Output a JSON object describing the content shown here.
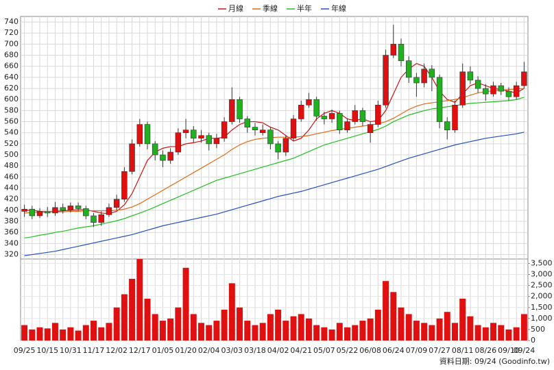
{
  "chart_data": {
    "type": "candlestick",
    "legend": "top",
    "grid": true,
    "source": "資料日期: 09/24 (Goodinfo.tw)",
    "up_color": "#e01010",
    "down_color": "#20b020",
    "categories": [
      "09/25",
      null,
      null,
      "10/15",
      null,
      null,
      "10/31",
      null,
      null,
      "11/17",
      null,
      null,
      "12/02",
      null,
      null,
      "12/17",
      null,
      null,
      "01/05",
      null,
      null,
      "01/20",
      null,
      null,
      "02/04",
      null,
      null,
      "03/03",
      null,
      null,
      "03/18",
      null,
      null,
      "04/02",
      null,
      null,
      "04/21",
      null,
      null,
      "05/07",
      null,
      null,
      "05/22",
      null,
      null,
      "06/08",
      null,
      null,
      "06/24",
      null,
      null,
      "07/09",
      null,
      null,
      "07/27",
      null,
      null,
      "08/11",
      null,
      null,
      "08/26",
      null,
      null,
      "09/10",
      null,
      "09/24"
    ],
    "open": [
      398,
      402,
      390,
      398,
      395,
      405,
      400,
      408,
      403,
      390,
      378,
      392,
      405,
      420,
      470,
      520,
      555,
      520,
      500,
      490,
      505,
      540,
      545,
      530,
      535,
      520,
      530,
      560,
      600,
      565,
      550,
      540,
      545,
      520,
      505,
      530,
      565,
      590,
      600,
      570,
      565,
      575,
      545,
      560,
      580,
      540,
      555,
      590,
      680,
      700,
      670,
      640,
      630,
      655,
      640,
      560,
      545,
      590,
      650,
      635,
      620,
      610,
      625,
      615,
      605,
      625
    ],
    "high": [
      410,
      408,
      404,
      406,
      415,
      412,
      414,
      414,
      408,
      395,
      398,
      412,
      428,
      478,
      528,
      565,
      560,
      525,
      508,
      512,
      548,
      565,
      552,
      545,
      540,
      538,
      568,
      622,
      605,
      570,
      558,
      555,
      550,
      525,
      535,
      572,
      598,
      612,
      605,
      578,
      582,
      580,
      566,
      590,
      585,
      560,
      598,
      690,
      735,
      710,
      678,
      648,
      665,
      662,
      645,
      568,
      598,
      665,
      660,
      642,
      628,
      632,
      630,
      622,
      632,
      668
    ],
    "low": [
      388,
      384,
      386,
      388,
      390,
      394,
      396,
      398,
      384,
      370,
      372,
      388,
      400,
      415,
      465,
      515,
      510,
      490,
      478,
      484,
      500,
      530,
      522,
      522,
      508,
      512,
      524,
      555,
      558,
      540,
      535,
      535,
      510,
      492,
      498,
      525,
      560,
      585,
      562,
      555,
      558,
      538,
      540,
      555,
      552,
      522,
      550,
      585,
      675,
      660,
      630,
      605,
      622,
      615,
      548,
      528,
      540,
      585,
      628,
      612,
      598,
      605,
      608,
      598,
      600,
      620
    ],
    "close": [
      402,
      390,
      398,
      395,
      405,
      400,
      408,
      403,
      390,
      378,
      392,
      405,
      420,
      470,
      520,
      555,
      520,
      500,
      490,
      505,
      540,
      545,
      530,
      535,
      520,
      530,
      560,
      600,
      565,
      550,
      545,
      545,
      520,
      505,
      530,
      565,
      590,
      600,
      570,
      565,
      575,
      545,
      560,
      580,
      560,
      555,
      590,
      680,
      700,
      670,
      640,
      630,
      655,
      640,
      560,
      545,
      590,
      650,
      635,
      620,
      610,
      625,
      615,
      605,
      625,
      650
    ],
    "ylim": [
      312,
      750
    ],
    "yticks": [
      320,
      340,
      360,
      380,
      400,
      420,
      440,
      460,
      480,
      500,
      520,
      540,
      560,
      580,
      600,
      620,
      640,
      660,
      680,
      700,
      720,
      740
    ],
    "series": [
      {
        "name": "月線",
        "color": "#d01010",
        "values": [
          400,
          400,
          398,
          397,
          398,
          399,
          400,
          401,
          401,
          398,
          395,
          394,
          398,
          410,
          430,
          460,
          490,
          505,
          512,
          515,
          515,
          520,
          522,
          525,
          530,
          530,
          532,
          545,
          555,
          560,
          560,
          558,
          550,
          545,
          535,
          525,
          530,
          545,
          565,
          575,
          580,
          575,
          565,
          562,
          565,
          560,
          562,
          580,
          610,
          640,
          655,
          665,
          660,
          640,
          615,
          600,
          595,
          610,
          625,
          630,
          625,
          620,
          618,
          615,
          612,
          620
        ]
      },
      {
        "name": "季線",
        "color": "#e06a10",
        "values": [
          395,
          396,
          396,
          397,
          397,
          397,
          398,
          398,
          399,
          399,
          399,
          399,
          400,
          402,
          406,
          412,
          420,
          428,
          436,
          444,
          452,
          460,
          468,
          476,
          484,
          492,
          500,
          510,
          518,
          524,
          528,
          530,
          531,
          532,
          532,
          532,
          533,
          535,
          538,
          541,
          544,
          546,
          548,
          550,
          552,
          554,
          556,
          560,
          566,
          574,
          582,
          588,
          592,
          594,
          596,
          598,
          600,
          603,
          608,
          612,
          614,
          616,
          617,
          618,
          619,
          620
        ]
      },
      {
        "name": "半年",
        "color": "#22c022",
        "values": [
          350,
          352,
          355,
          357,
          360,
          362,
          365,
          368,
          370,
          372,
          375,
          378,
          381,
          385,
          390,
          395,
          400,
          406,
          412,
          418,
          424,
          430,
          436,
          442,
          448,
          454,
          458,
          462,
          466,
          470,
          474,
          478,
          482,
          486,
          490,
          494,
          500,
          506,
          512,
          518,
          522,
          526,
          530,
          534,
          538,
          542,
          546,
          552,
          560,
          566,
          572,
          576,
          580,
          583,
          585,
          587,
          589,
          591,
          593,
          594,
          595,
          596,
          597,
          598,
          600,
          604
        ]
      },
      {
        "name": "年線",
        "color": "#2050c0",
        "values": [
          318,
          320,
          322,
          324,
          326,
          329,
          332,
          335,
          338,
          341,
          344,
          347,
          350,
          353,
          356,
          360,
          364,
          368,
          372,
          375,
          378,
          381,
          384,
          387,
          390,
          393,
          397,
          401,
          405,
          409,
          413,
          417,
          421,
          425,
          428,
          431,
          434,
          438,
          442,
          446,
          450,
          454,
          458,
          462,
          466,
          470,
          474,
          479,
          484,
          489,
          494,
          498,
          502,
          506,
          510,
          514,
          518,
          521,
          524,
          527,
          530,
          532,
          534,
          536,
          538,
          541
        ]
      }
    ],
    "volume": {
      "type": "bar",
      "color": "#e01010",
      "values": [
        700,
        500,
        600,
        550,
        800,
        500,
        600,
        450,
        700,
        900,
        600,
        800,
        1500,
        2100,
        2800,
        3700,
        1900,
        1200,
        900,
        1000,
        1500,
        3300,
        1200,
        800,
        700,
        900,
        1400,
        2600,
        1500,
        900,
        700,
        800,
        1200,
        1400,
        900,
        1100,
        1200,
        1000,
        700,
        600,
        500,
        800,
        600,
        700,
        900,
        1000,
        1400,
        2700,
        2200,
        1500,
        1200,
        900,
        800,
        700,
        1000,
        1300,
        800,
        1900,
        1100,
        700,
        600,
        800,
        700,
        500,
        600,
        1200
      ],
      "ylim": [
        0,
        3700
      ],
      "yticks": [
        0,
        500,
        {
          "value": 1000,
          "label": "1,000"
        },
        {
          "value": 1500,
          "label": "1,500"
        },
        {
          "value": 2000,
          "label": "2,000"
        },
        {
          "value": 2500,
          "label": "2,500"
        },
        {
          "value": 3000,
          "label": "3,000"
        },
        {
          "value": 3500,
          "label": "3,500"
        }
      ]
    }
  }
}
